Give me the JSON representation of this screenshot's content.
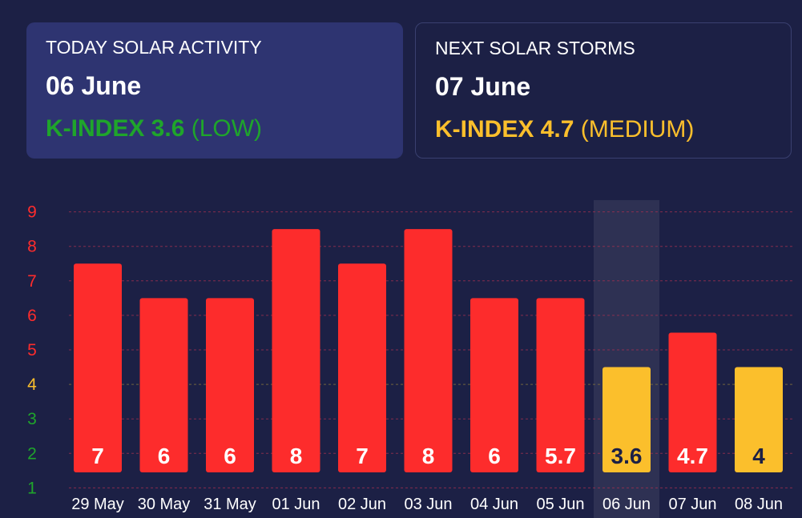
{
  "today": {
    "label": "TODAY SOLAR ACTIVITY",
    "date": "06 June",
    "kindex_text": "K-INDEX 3.6",
    "level": "(LOW)",
    "color": "#1fa52b"
  },
  "next": {
    "label": "NEXT SOLAR STORMS",
    "date": "07 June",
    "kindex_text": "K-INDEX 4.7",
    "level": "(MEDIUM)",
    "color": "#fbbf2c"
  },
  "colors": {
    "red": "#fd2c2c",
    "yellow": "#fbbf2c",
    "green": "#1fa52b",
    "highlight": "#2e3153",
    "grid": "#a83050"
  },
  "chart_data": {
    "type": "bar",
    "categories": [
      "29 May",
      "30 May",
      "31 May",
      "01 Jun",
      "02 Jun",
      "03 Jun",
      "04 Jun",
      "05 Jun",
      "06 Jun",
      "07 Jun",
      "08 Jun"
    ],
    "values": [
      7,
      6,
      6,
      8,
      7,
      8,
      6,
      5.7,
      3.6,
      4.7,
      4
    ],
    "labels": [
      "7",
      "6",
      "6",
      "8",
      "7",
      "8",
      "6",
      "5.7",
      "3.6",
      "4.7",
      "4"
    ],
    "bar_tops": [
      7.5,
      6.5,
      6.5,
      8.5,
      7.5,
      8.5,
      6.5,
      6.5,
      4.5,
      5.5,
      4.5
    ],
    "bar_colors": [
      "red",
      "red",
      "red",
      "red",
      "red",
      "red",
      "red",
      "red",
      "yellow",
      "red",
      "yellow"
    ],
    "highlight_category": "06 Jun",
    "yticks": [
      1,
      2,
      3,
      4,
      5,
      6,
      7,
      8,
      9
    ],
    "ytick_colors": [
      "green",
      "green",
      "green",
      "yellow",
      "red",
      "red",
      "red",
      "red",
      "red"
    ],
    "ylim": [
      0.6,
      9.3
    ],
    "grid": true
  }
}
